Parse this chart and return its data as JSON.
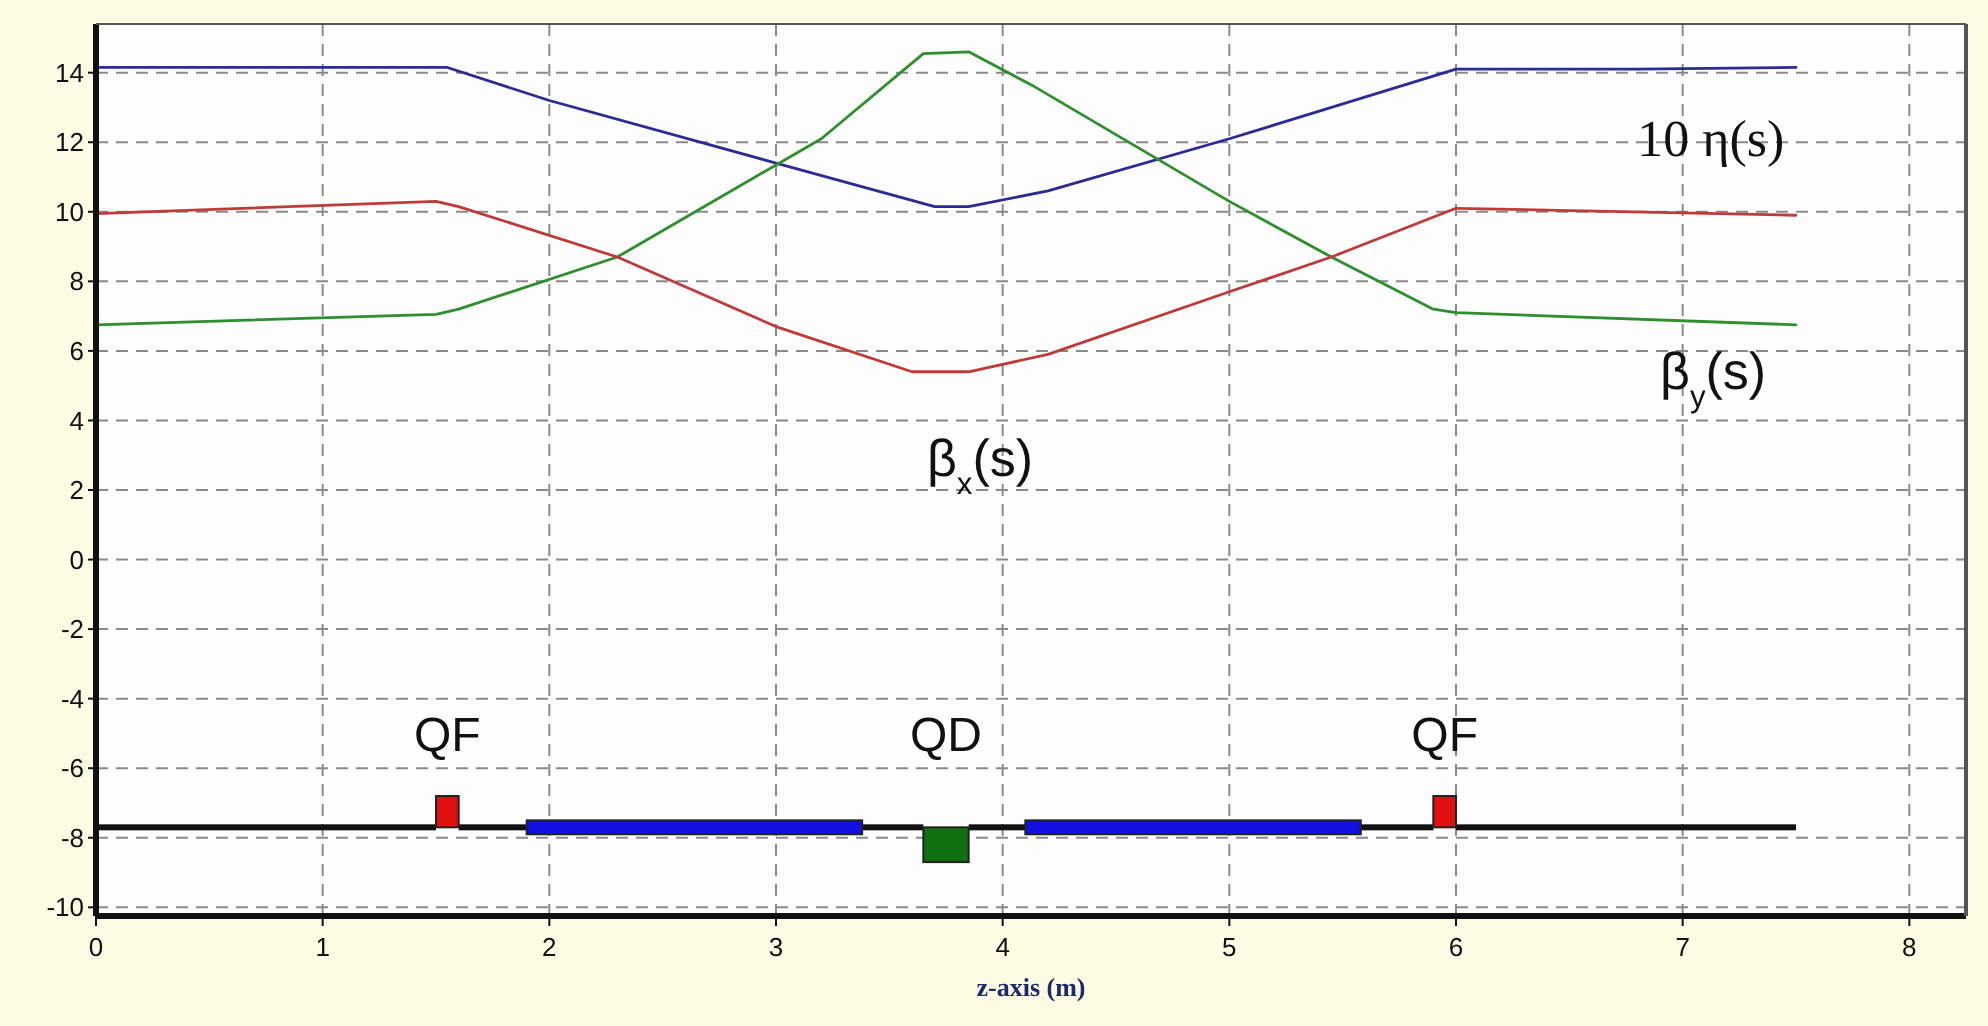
{
  "chart_data": {
    "type": "line",
    "xlabel": "z-axis (m)",
    "xlim": [
      0,
      8.25
    ],
    "ylim": [
      -10.25,
      15.4
    ],
    "xticks": [
      0,
      1,
      2,
      3,
      4,
      5,
      6,
      7,
      8
    ],
    "yticks": [
      -10,
      -8,
      -6,
      -4,
      -2,
      0,
      2,
      4,
      6,
      8,
      10,
      12,
      14
    ],
    "grid": true,
    "marker": "none",
    "line_style": "solid",
    "series": [
      {
        "name": "10 η(s)",
        "color": "#2b2b96",
        "x": [
          0,
          1.55,
          2,
          3,
          3.7,
          3.85,
          4.2,
          5,
          6,
          6.8,
          7.5
        ],
        "values": [
          14.15,
          14.15,
          13.2,
          11.4,
          10.15,
          10.15,
          10.6,
          12.1,
          14.1,
          14.1,
          14.15
        ]
      },
      {
        "name": "β$_{y}$(s)",
        "color": "#2e8f2e",
        "x": [
          0,
          1.5,
          1.6,
          2.3,
          3.2,
          3.65,
          3.85,
          4.14,
          5,
          5.45,
          5.9,
          6,
          7.5
        ],
        "values": [
          6.75,
          7.05,
          7.2,
          8.7,
          12.1,
          14.55,
          14.6,
          13.6,
          10.3,
          8.7,
          7.2,
          7.1,
          6.75
        ]
      },
      {
        "name": "β$_{x}$(s)",
        "color": "#c03a3a",
        "x": [
          0,
          1.5,
          1.6,
          2.3,
          3,
          3.6,
          3.85,
          4.2,
          5,
          5.45,
          6,
          6.4,
          7.5
        ],
        "values": [
          9.95,
          10.3,
          10.15,
          8.7,
          6.7,
          5.4,
          5.4,
          5.9,
          7.7,
          8.7,
          10.1,
          10.05,
          9.9
        ]
      }
    ],
    "annotations": [
      "QF",
      "QD",
      "QF"
    ]
  }
}
